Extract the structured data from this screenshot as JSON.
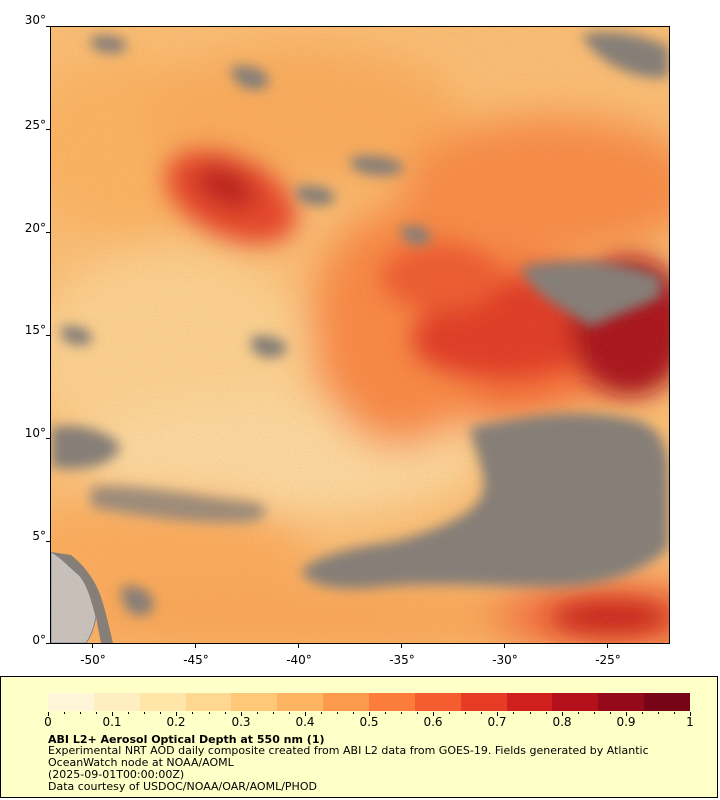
{
  "map": {
    "lat_labels": [
      "30°",
      "25°",
      "20°",
      "15°",
      "10°",
      "5°",
      "0°"
    ],
    "lon_labels": [
      "-50°",
      "-45°",
      "-40°",
      "-35°",
      "-30°",
      "-25°"
    ],
    "lat_range": [
      0,
      30
    ],
    "lon_range": [
      -52,
      -22
    ],
    "no_data_color": "#7f7f7f",
    "land_color": "#c8c8c8"
  },
  "legend": {
    "tick_labels": [
      "0",
      "0.1",
      "0.2",
      "0.3",
      "0.4",
      "0.5",
      "0.6",
      "0.7",
      "0.8",
      "0.9",
      "1"
    ],
    "range": [
      0,
      1
    ],
    "title": "ABI L2+ Aerosol Optical Depth at 550 nm (1)",
    "lines": [
      "Experimental NRT AOD daily composite created from ABI L2 data from GOES-19. Fields generated by Atlantic",
      "OceanWatch node at NOAA/AOML",
      "(2025-09-01T00:00:00Z)",
      "Data courtesy of USDOC/NOAA/OAR/AOML/PHOD"
    ],
    "colors": [
      "#fff5d8",
      "#ffefc0",
      "#ffe5a8",
      "#fed890",
      "#fec878",
      "#feb460",
      "#fd9a4c",
      "#fc7c3c",
      "#f55c30",
      "#e63c26",
      "#d0201e",
      "#b4101c",
      "#940a1a",
      "#780417"
    ]
  }
}
